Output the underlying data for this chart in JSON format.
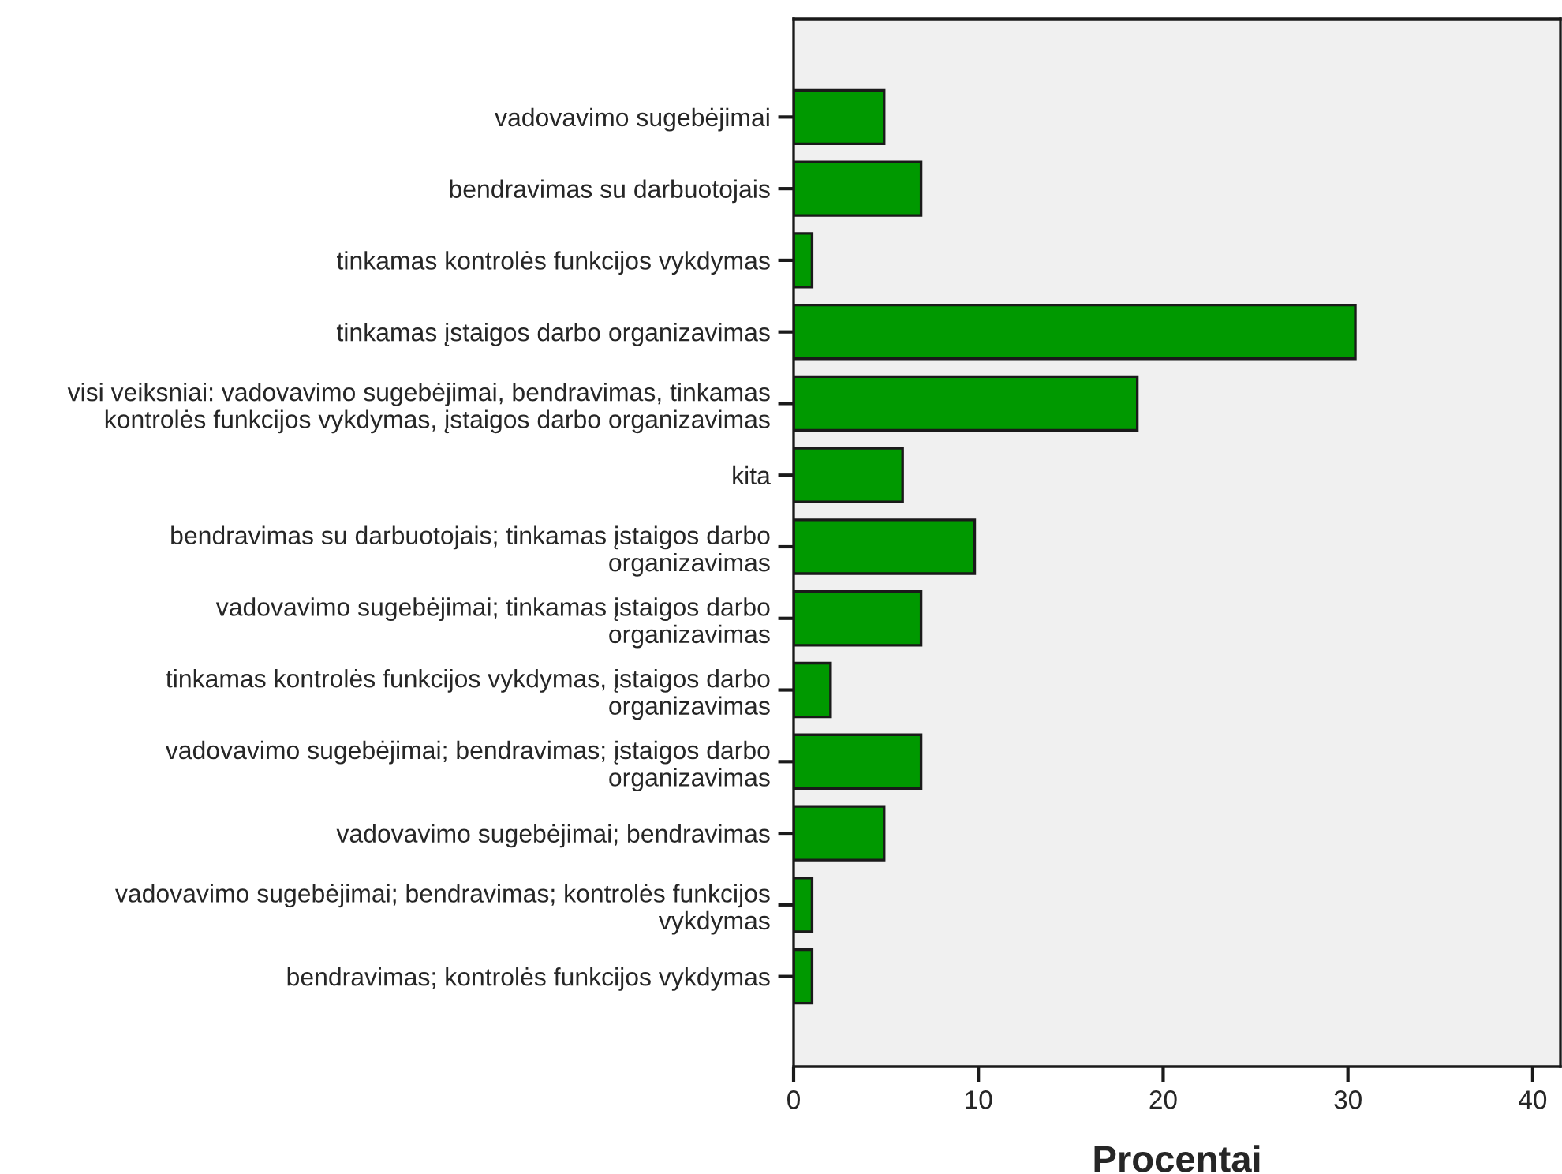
{
  "chart_data": {
    "type": "bar",
    "orientation": "horizontal",
    "xlabel": "Procentai",
    "categories": [
      "vadovavimo sugebėjimai",
      "bendravimas su darbuotojais",
      "tinkamas kontrolės funkcijos vykdymas",
      "tinkamas įstaigos darbo organizavimas",
      "visi veiksniai: vadovavimo sugebėjimai, bendravimas, tinkamas\nkontrolės funkcijos vykdymas, įstaigos darbo organizavimas",
      "kita",
      "bendravimas su darbuotojais; tinkamas įstaigos darbo\norganizavimas",
      "vadovavimo sugebėjimai; tinkamas įstaigos darbo\norganizavimas",
      "tinkamas kontrolės funkcijos vykdymas, įstaigos darbo\norganizavimas",
      "vadovavimo sugebėjimai; bendravimas; įstaigos darbo\norganizavimas",
      "vadovavimo sugebėjimai; bendravimas",
      "vadovavimo sugebėjimai; bendravimas; kontrolės funkcijos\nvykdymas",
      "bendravimas; kontrolės funkcijos vykdymas"
    ],
    "values": [
      4.9,
      6.9,
      1.0,
      30.4,
      18.6,
      5.9,
      9.8,
      6.9,
      2.0,
      6.9,
      4.9,
      1.0,
      1.0
    ],
    "color": "#009900",
    "xlim": [
      0,
      41.5
    ],
    "xticks": [
      0,
      10,
      20,
      30,
      40
    ],
    "grid": false
  }
}
